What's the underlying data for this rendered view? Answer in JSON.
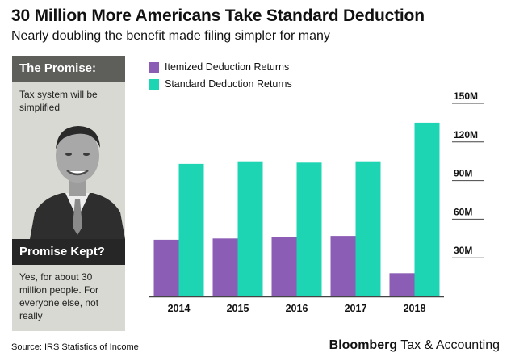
{
  "header": {
    "title": "30 Million More Americans Take Standard Deduction",
    "subtitle": "Nearly doubling the benefit made filing simpler for many"
  },
  "panel": {
    "promise_heading": "The Promise:",
    "promise_text": "Tax system will be simplified",
    "kept_heading": "Promise Kept?",
    "kept_text": "Yes, for about 30 million people. For everyone else, not really"
  },
  "footer": {
    "source": "Source: IRS Statistics of Income",
    "brand_bold": "Bloomberg",
    "brand_rest": " Tax & Accounting"
  },
  "colors": {
    "itemized": "#8b5db5",
    "standard": "#1dd5b3",
    "axis": "#444444"
  },
  "chart_data": {
    "type": "bar",
    "categories": [
      "2014",
      "2015",
      "2016",
      "2017",
      "2018"
    ],
    "series": [
      {
        "name": "Itemized Deduction Returns",
        "values": [
          44,
          45,
          46,
          47,
          18
        ]
      },
      {
        "name": "Standard Deduction Returns",
        "values": [
          103,
          105,
          104,
          105,
          135
        ]
      }
    ],
    "yticks": [
      "30M",
      "60M",
      "90M",
      "120M",
      "150M"
    ],
    "ytick_values": [
      30,
      60,
      90,
      120,
      150
    ],
    "ylim": [
      0,
      150
    ],
    "legend_position": "top-left",
    "grid": false
  }
}
